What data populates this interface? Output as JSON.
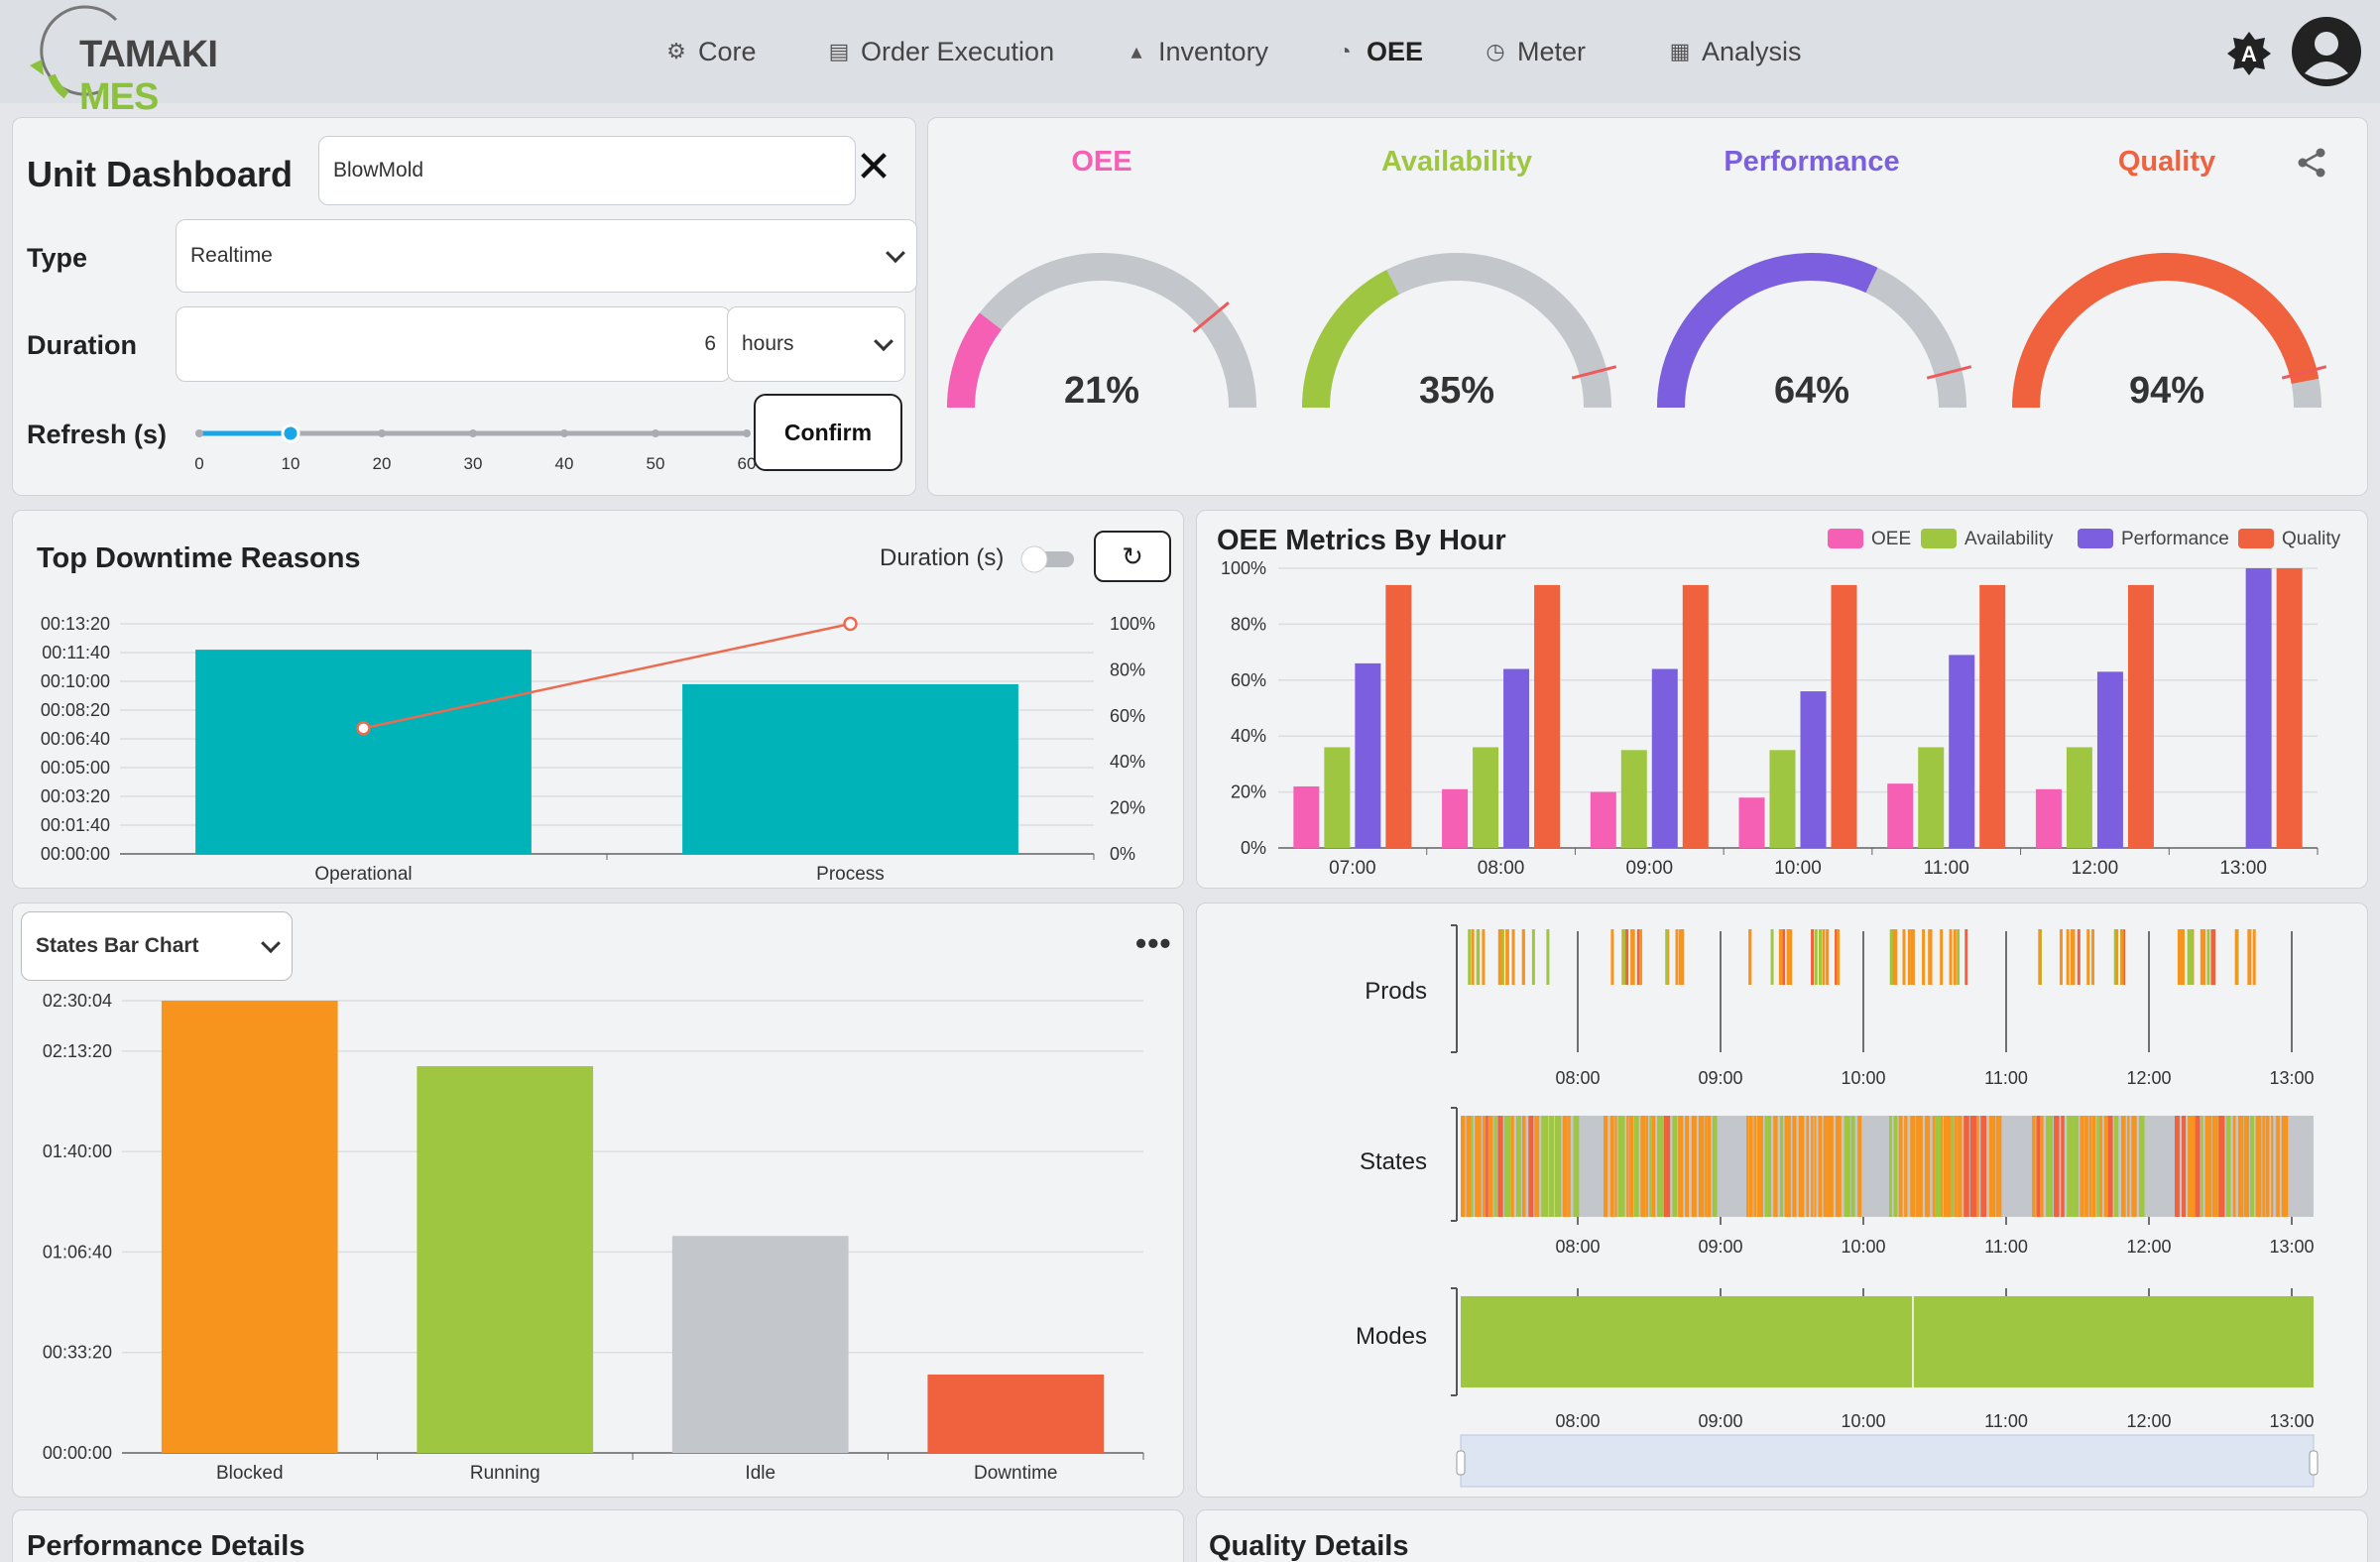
{
  "app": {
    "logo_main": "TAMAKI",
    "logo_accent": " MES"
  },
  "nav": {
    "items": [
      {
        "label": "Core",
        "icon": "gear-icon"
      },
      {
        "label": "Order Execution",
        "icon": "calendar-icon"
      },
      {
        "label": "Inventory",
        "icon": "boxes-icon"
      },
      {
        "label": "OEE",
        "icon": "gauge-icon"
      },
      {
        "label": "Meter",
        "icon": "meter-icon"
      },
      {
        "label": "Analysis",
        "icon": "chart-icon"
      }
    ],
    "active": "OEE",
    "theme_letter": "A"
  },
  "unit_dashboard": {
    "title": "Unit Dashboard",
    "unit_value": "BlowMold",
    "type_label": "Type",
    "type_value": "Realtime",
    "duration_label": "Duration",
    "duration_value": "6",
    "duration_unit": "hours",
    "refresh_label": "Refresh (s)",
    "refresh_ticks": [
      "0",
      "10",
      "20",
      "30",
      "40",
      "50",
      "60"
    ],
    "refresh_value": 10,
    "confirm_label": "Confirm"
  },
  "gauges": [
    {
      "title": "OEE",
      "value": 21,
      "display": "21%",
      "color": "#f55fb4",
      "target": 0.78
    },
    {
      "title": "Availability",
      "value": 35,
      "display": "35%",
      "color": "#9ec640",
      "target": 0.92
    },
    {
      "title": "Performance",
      "value": 64,
      "display": "64%",
      "color": "#7b5fdf",
      "target": 0.92
    },
    {
      "title": "Quality",
      "value": 94,
      "display": "94%",
      "color": "#f0613d",
      "target": 0.92
    }
  ],
  "downtime": {
    "title": "Top Downtime Reasons",
    "toggle_label": "Duration (s)",
    "chart_data": {
      "type": "bar",
      "categories": [
        "Operational",
        "Process"
      ],
      "values_seconds": [
        710,
        590
      ],
      "pareto_percent": [
        54.6,
        100
      ],
      "y_ticks": [
        "00:00:00",
        "00:01:40",
        "00:03:20",
        "00:05:00",
        "00:06:40",
        "00:08:20",
        "00:10:00",
        "00:11:40",
        "00:13:20"
      ],
      "y2_ticks": [
        "0%",
        "20%",
        "40%",
        "60%",
        "80%",
        "100%"
      ],
      "ylim": [
        0,
        800
      ],
      "bar_color": "#00b3b9",
      "line_color": "#ee6a4f"
    }
  },
  "oee_hour": {
    "title": "OEE Metrics By Hour",
    "chart_data": {
      "type": "bar",
      "categories": [
        "07:00",
        "08:00",
        "09:00",
        "10:00",
        "11:00",
        "12:00",
        "13:00"
      ],
      "series": [
        {
          "name": "OEE",
          "color": "#f55fb4",
          "values": [
            22,
            21,
            20,
            18,
            23,
            21,
            0
          ]
        },
        {
          "name": "Availability",
          "color": "#9ec640",
          "values": [
            36,
            36,
            35,
            35,
            36,
            36,
            0
          ]
        },
        {
          "name": "Performance",
          "color": "#7b5fdf",
          "values": [
            66,
            64,
            64,
            56,
            69,
            63,
            100
          ]
        },
        {
          "name": "Quality",
          "color": "#f0613d",
          "values": [
            94,
            94,
            94,
            94,
            94,
            94,
            100
          ]
        }
      ],
      "y_ticks": [
        "0%",
        "20%",
        "40%",
        "60%",
        "80%",
        "100%"
      ],
      "ylim": [
        0,
        100
      ]
    }
  },
  "states": {
    "dropdown_value": "States Bar Chart",
    "chart_data": {
      "type": "bar",
      "categories": [
        "Blocked",
        "Running",
        "Idle",
        "Downtime"
      ],
      "values_seconds": [
        9004,
        7700,
        4320,
        1560
      ],
      "colors": [
        "#f7941e",
        "#9ec640",
        "#c3c6cb",
        "#f0613d"
      ],
      "y_ticks": [
        "00:00:00",
        "00:33:20",
        "01:06:40",
        "01:40:00",
        "02:13:20",
        "02:30:04"
      ],
      "y_tick_values": [
        0,
        2000,
        4000,
        6000,
        8000,
        9004
      ],
      "ylim": [
        0,
        9004
      ]
    }
  },
  "timeline": {
    "rows": [
      "Prods",
      "States",
      "Modes"
    ],
    "x_ticks": [
      "08:00",
      "09:00",
      "10:00",
      "11:00",
      "12:00",
      "13:00"
    ]
  },
  "bottom": {
    "left_title": "Performance Details",
    "right_title": "Quality Details"
  }
}
